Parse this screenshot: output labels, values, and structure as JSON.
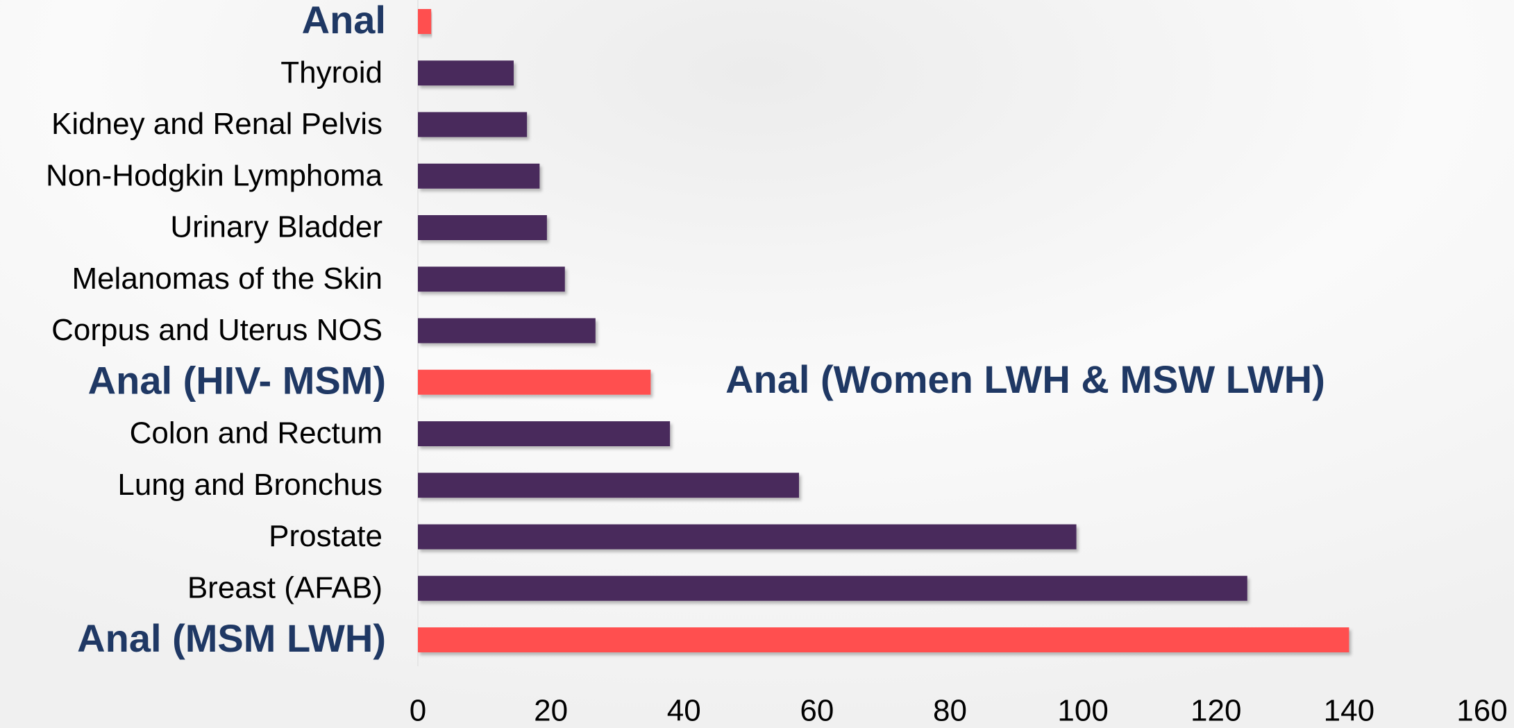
{
  "chart_data": {
    "type": "barh",
    "categories": [
      "Anal",
      "Thyroid",
      "Kidney and Renal Pelvis",
      "Non-Hodgkin Lymphoma",
      "Urinary Bladder",
      "Melanomas of the Skin",
      "Corpus and Uterus NOS",
      "Anal (HIV- MSM)",
      "Colon and Rectum",
      "Lung and Bronchus",
      "Prostate",
      "Breast (AFAB)",
      "Anal (MSM LWH)"
    ],
    "values": [
      2,
      14.4,
      16.4,
      18.3,
      19.4,
      22.1,
      26.7,
      35,
      37.9,
      57.3,
      99,
      124.7,
      140
    ],
    "colors": [
      "#ff5050",
      "#4a2a5c",
      "#4a2a5c",
      "#4a2a5c",
      "#4a2a5c",
      "#4a2a5c",
      "#4a2a5c",
      "#ff5050",
      "#4a2a5c",
      "#4a2a5c",
      "#4a2a5c",
      "#4a2a5c",
      "#ff5050"
    ],
    "highlight_color": "#ff5050",
    "annotation": "Anal (Women LWH  & MSW LWH)",
    "xlim": [
      0,
      160
    ],
    "xticks": [
      0,
      20,
      40,
      60,
      80,
      100,
      120,
      140,
      160
    ]
  }
}
